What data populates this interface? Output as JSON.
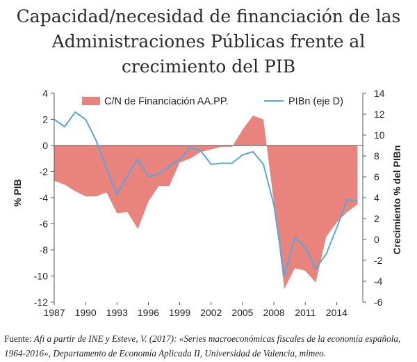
{
  "title_lines": [
    "Capacidad/necesidad de financiación de las",
    "Administraciones Públicas frente al",
    "crecimiento del PIB"
  ],
  "source": {
    "label": "Fuente: ",
    "text_line1": "Afi a partir de INE y Esteve, V. (2017): «Series macroeconómicas fiscales de la economía española,",
    "text_line2": "1964-2016», Departamento de Economía Aplicada II, Universidad de Valencia, mimeo."
  },
  "colors": {
    "area": "#e8847d",
    "line": "#5aa5dc",
    "axis": "#555555"
  },
  "chart_data": {
    "type": "area",
    "legend": [
      "C/N de Financiación AA.PP.",
      "PIBn (eje D)"
    ],
    "legend_placement": "top",
    "ylabel_left": "% PIB",
    "ylabel_right": "Crecimiento % del PIBn",
    "ylim_left": [
      -12,
      4
    ],
    "ylim_right": [
      -6,
      14
    ],
    "yticks_left": [
      "4",
      "2",
      "0",
      "-2",
      "-4",
      "-6",
      "-8",
      "-10",
      "-12"
    ],
    "yticks_right": [
      "14",
      "12",
      "10",
      "8",
      "6",
      "4",
      "2",
      "0",
      "-2",
      "-4",
      "-6"
    ],
    "xlim": [
      1987,
      2016.5
    ],
    "xticks": [
      "1987",
      "1990",
      "1993",
      "1996",
      "1999",
      "2002",
      "2005",
      "2008",
      "2011",
      "2014"
    ],
    "grid": false,
    "x": [
      1987,
      1988,
      1989,
      1990,
      1991,
      1992,
      1993,
      1994,
      1995,
      1996,
      1997,
      1998,
      1999,
      2000,
      2001,
      2002,
      2003,
      2004,
      2005,
      2006,
      2007,
      2008,
      2009,
      2010,
      2011,
      2012,
      2013,
      2014,
      2015,
      2016
    ],
    "series": [
      {
        "name": "C/N de Financiación AA.PP.",
        "axis": "left",
        "values": [
          -2.7,
          -3.0,
          -3.5,
          -3.9,
          -3.9,
          -3.6,
          -5.2,
          -5.1,
          -6.4,
          -4.3,
          -3.1,
          -3.1,
          -1.3,
          -1.0,
          -0.5,
          -0.3,
          -0.1,
          -0.1,
          1.2,
          2.3,
          2.0,
          -4.4,
          -11.0,
          -9.4,
          -9.6,
          -10.5,
          -7.0,
          -5.9,
          -5.1,
          -4.5
        ]
      },
      {
        "name": "PIBn (eje D)",
        "axis": "right",
        "values": [
          11.5,
          10.8,
          12.2,
          11.5,
          9.5,
          6.8,
          4.3,
          6.1,
          7.7,
          6.0,
          6.3,
          7.0,
          7.7,
          8.8,
          8.5,
          7.2,
          7.3,
          7.3,
          8.1,
          8.4,
          7.2,
          3.3,
          -3.5,
          0.2,
          -0.8,
          -2.8,
          -1.4,
          1.1,
          3.8,
          3.7
        ]
      }
    ]
  }
}
